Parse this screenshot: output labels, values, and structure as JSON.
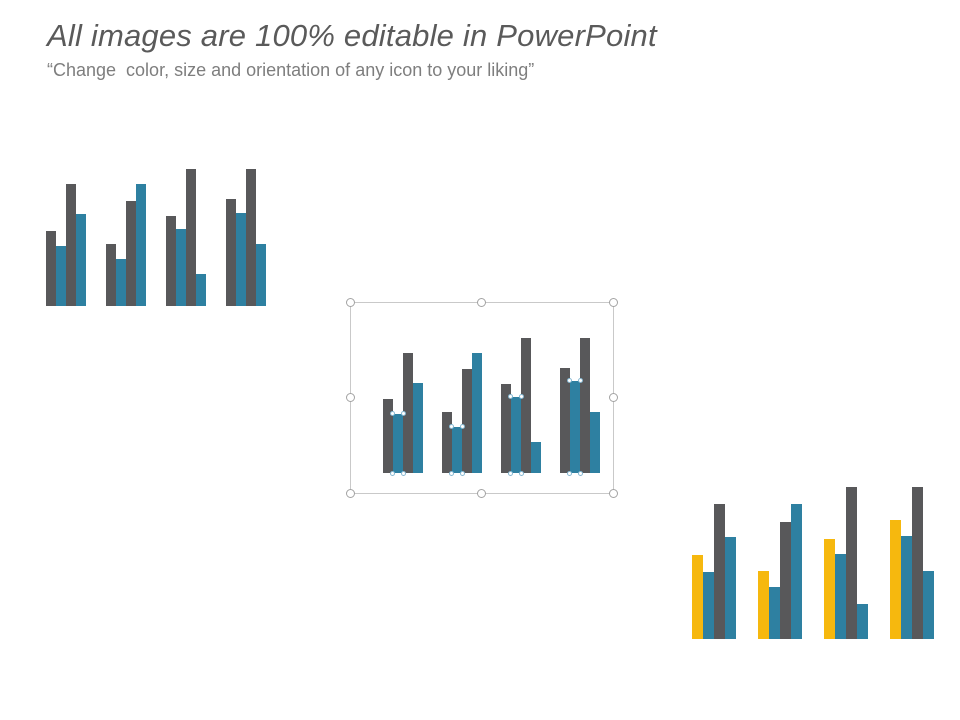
{
  "title": "All images are 100% editable in PowerPoint",
  "subtitle": "“Change  color, size and orientation of any icon to your liking”",
  "colors": {
    "gray": "#58585a",
    "blue": "#2e80a1",
    "yellow": "#f6b80e",
    "title_text": "#5a5a5a",
    "subtitle_text": "#7e7e7e",
    "selection_border": "#c9c9c9"
  },
  "chart_data": [
    {
      "type": "bar",
      "name": "grouped-bar-icon-top-left",
      "title": "",
      "xlabel": "",
      "ylabel": "",
      "categories": [
        "group-1",
        "group-2",
        "group-3",
        "group-4"
      ],
      "series_colors": [
        "gray",
        "blue",
        "gray",
        "blue"
      ],
      "groups": [
        [
          55,
          44,
          89,
          67
        ],
        [
          45,
          34,
          77,
          89
        ],
        [
          66,
          56,
          100,
          23
        ],
        [
          78,
          68,
          100,
          45
        ]
      ],
      "ylim": [
        0,
        100
      ],
      "grid": false,
      "legend": false,
      "selected": false
    },
    {
      "type": "bar",
      "name": "grouped-bar-icon-middle",
      "title": "",
      "xlabel": "",
      "ylabel": "",
      "categories": [
        "group-1",
        "group-2",
        "group-3",
        "group-4"
      ],
      "series_colors": [
        "gray",
        "blue",
        "gray",
        "blue"
      ],
      "groups": [
        [
          55,
          44,
          89,
          67
        ],
        [
          45,
          34,
          77,
          89
        ],
        [
          66,
          56,
          100,
          23
        ],
        [
          78,
          68,
          100,
          45
        ]
      ],
      "ylim": [
        0,
        100
      ],
      "grid": false,
      "legend": false,
      "selected": true,
      "edit_point_series_index": 1
    },
    {
      "type": "bar",
      "name": "grouped-bar-icon-bottom-right",
      "title": "",
      "xlabel": "",
      "ylabel": "",
      "categories": [
        "group-1",
        "group-2",
        "group-3",
        "group-4"
      ],
      "series_colors": [
        "yellow",
        "blue",
        "gray",
        "blue"
      ],
      "groups": [
        [
          55,
          44,
          89,
          67
        ],
        [
          45,
          34,
          77,
          89
        ],
        [
          66,
          56,
          100,
          23
        ],
        [
          78,
          68,
          100,
          45
        ]
      ],
      "ylim": [
        0,
        100
      ],
      "grid": false,
      "legend": false,
      "selected": false
    }
  ]
}
